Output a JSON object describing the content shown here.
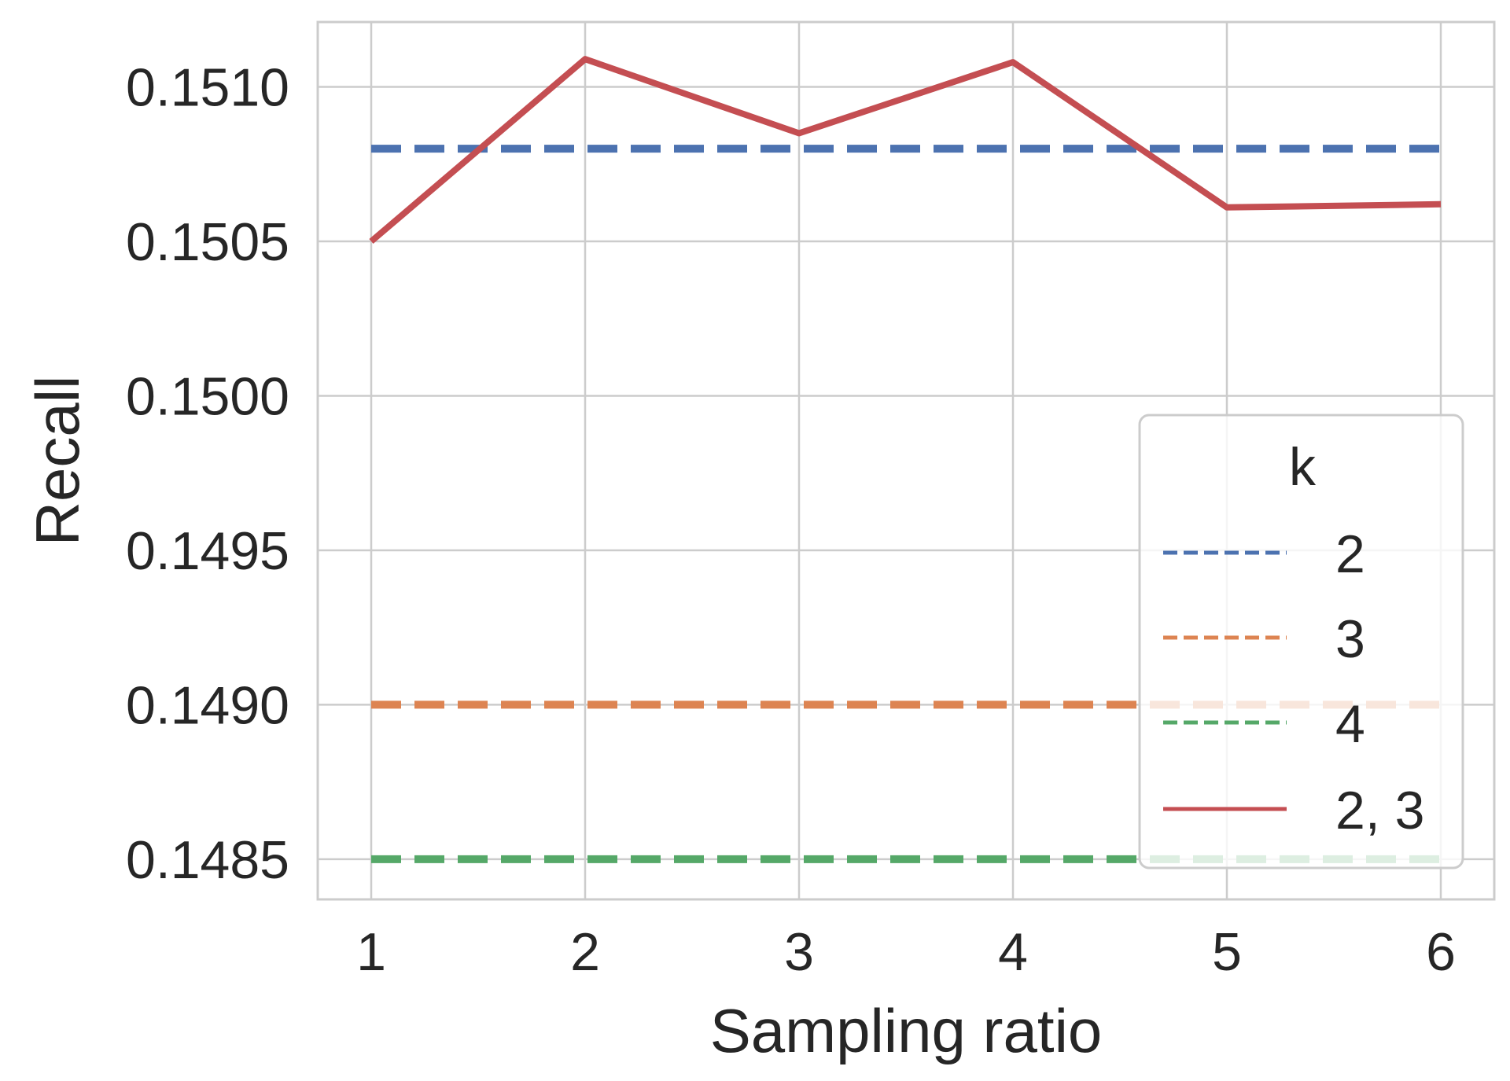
{
  "chart_data": {
    "type": "line",
    "title": "",
    "xlabel": "Sampling ratio",
    "ylabel": "Recall",
    "x": [
      1,
      2,
      3,
      4,
      5,
      6
    ],
    "x_ticks": [
      "1",
      "2",
      "3",
      "4",
      "5",
      "6"
    ],
    "xlim": [
      0.75,
      6.25
    ],
    "y_ticks": [
      "0.1485",
      "0.1490",
      "0.1495",
      "0.1500",
      "0.1505",
      "0.1510"
    ],
    "ylim": [
      0.14837,
      0.15121
    ],
    "grid": true,
    "legend": {
      "title": "k",
      "placement": "lower-right"
    },
    "series": [
      {
        "name": "2",
        "style": "dashed",
        "color": "#4c72b0",
        "values": [
          0.1508,
          0.1508,
          0.1508,
          0.1508,
          0.1508,
          0.1508
        ]
      },
      {
        "name": "3",
        "style": "dashed",
        "color": "#dd8452",
        "values": [
          0.149,
          0.149,
          0.149,
          0.149,
          0.149,
          0.149
        ]
      },
      {
        "name": "4",
        "style": "dashed",
        "color": "#55a868",
        "values": [
          0.1485,
          0.1485,
          0.1485,
          0.1485,
          0.1485,
          0.1485
        ]
      },
      {
        "name": "2, 3",
        "style": "solid",
        "color": "#c44e52",
        "values": [
          0.1505,
          0.15109,
          0.15085,
          0.15108,
          0.15061,
          0.15062
        ]
      }
    ]
  }
}
